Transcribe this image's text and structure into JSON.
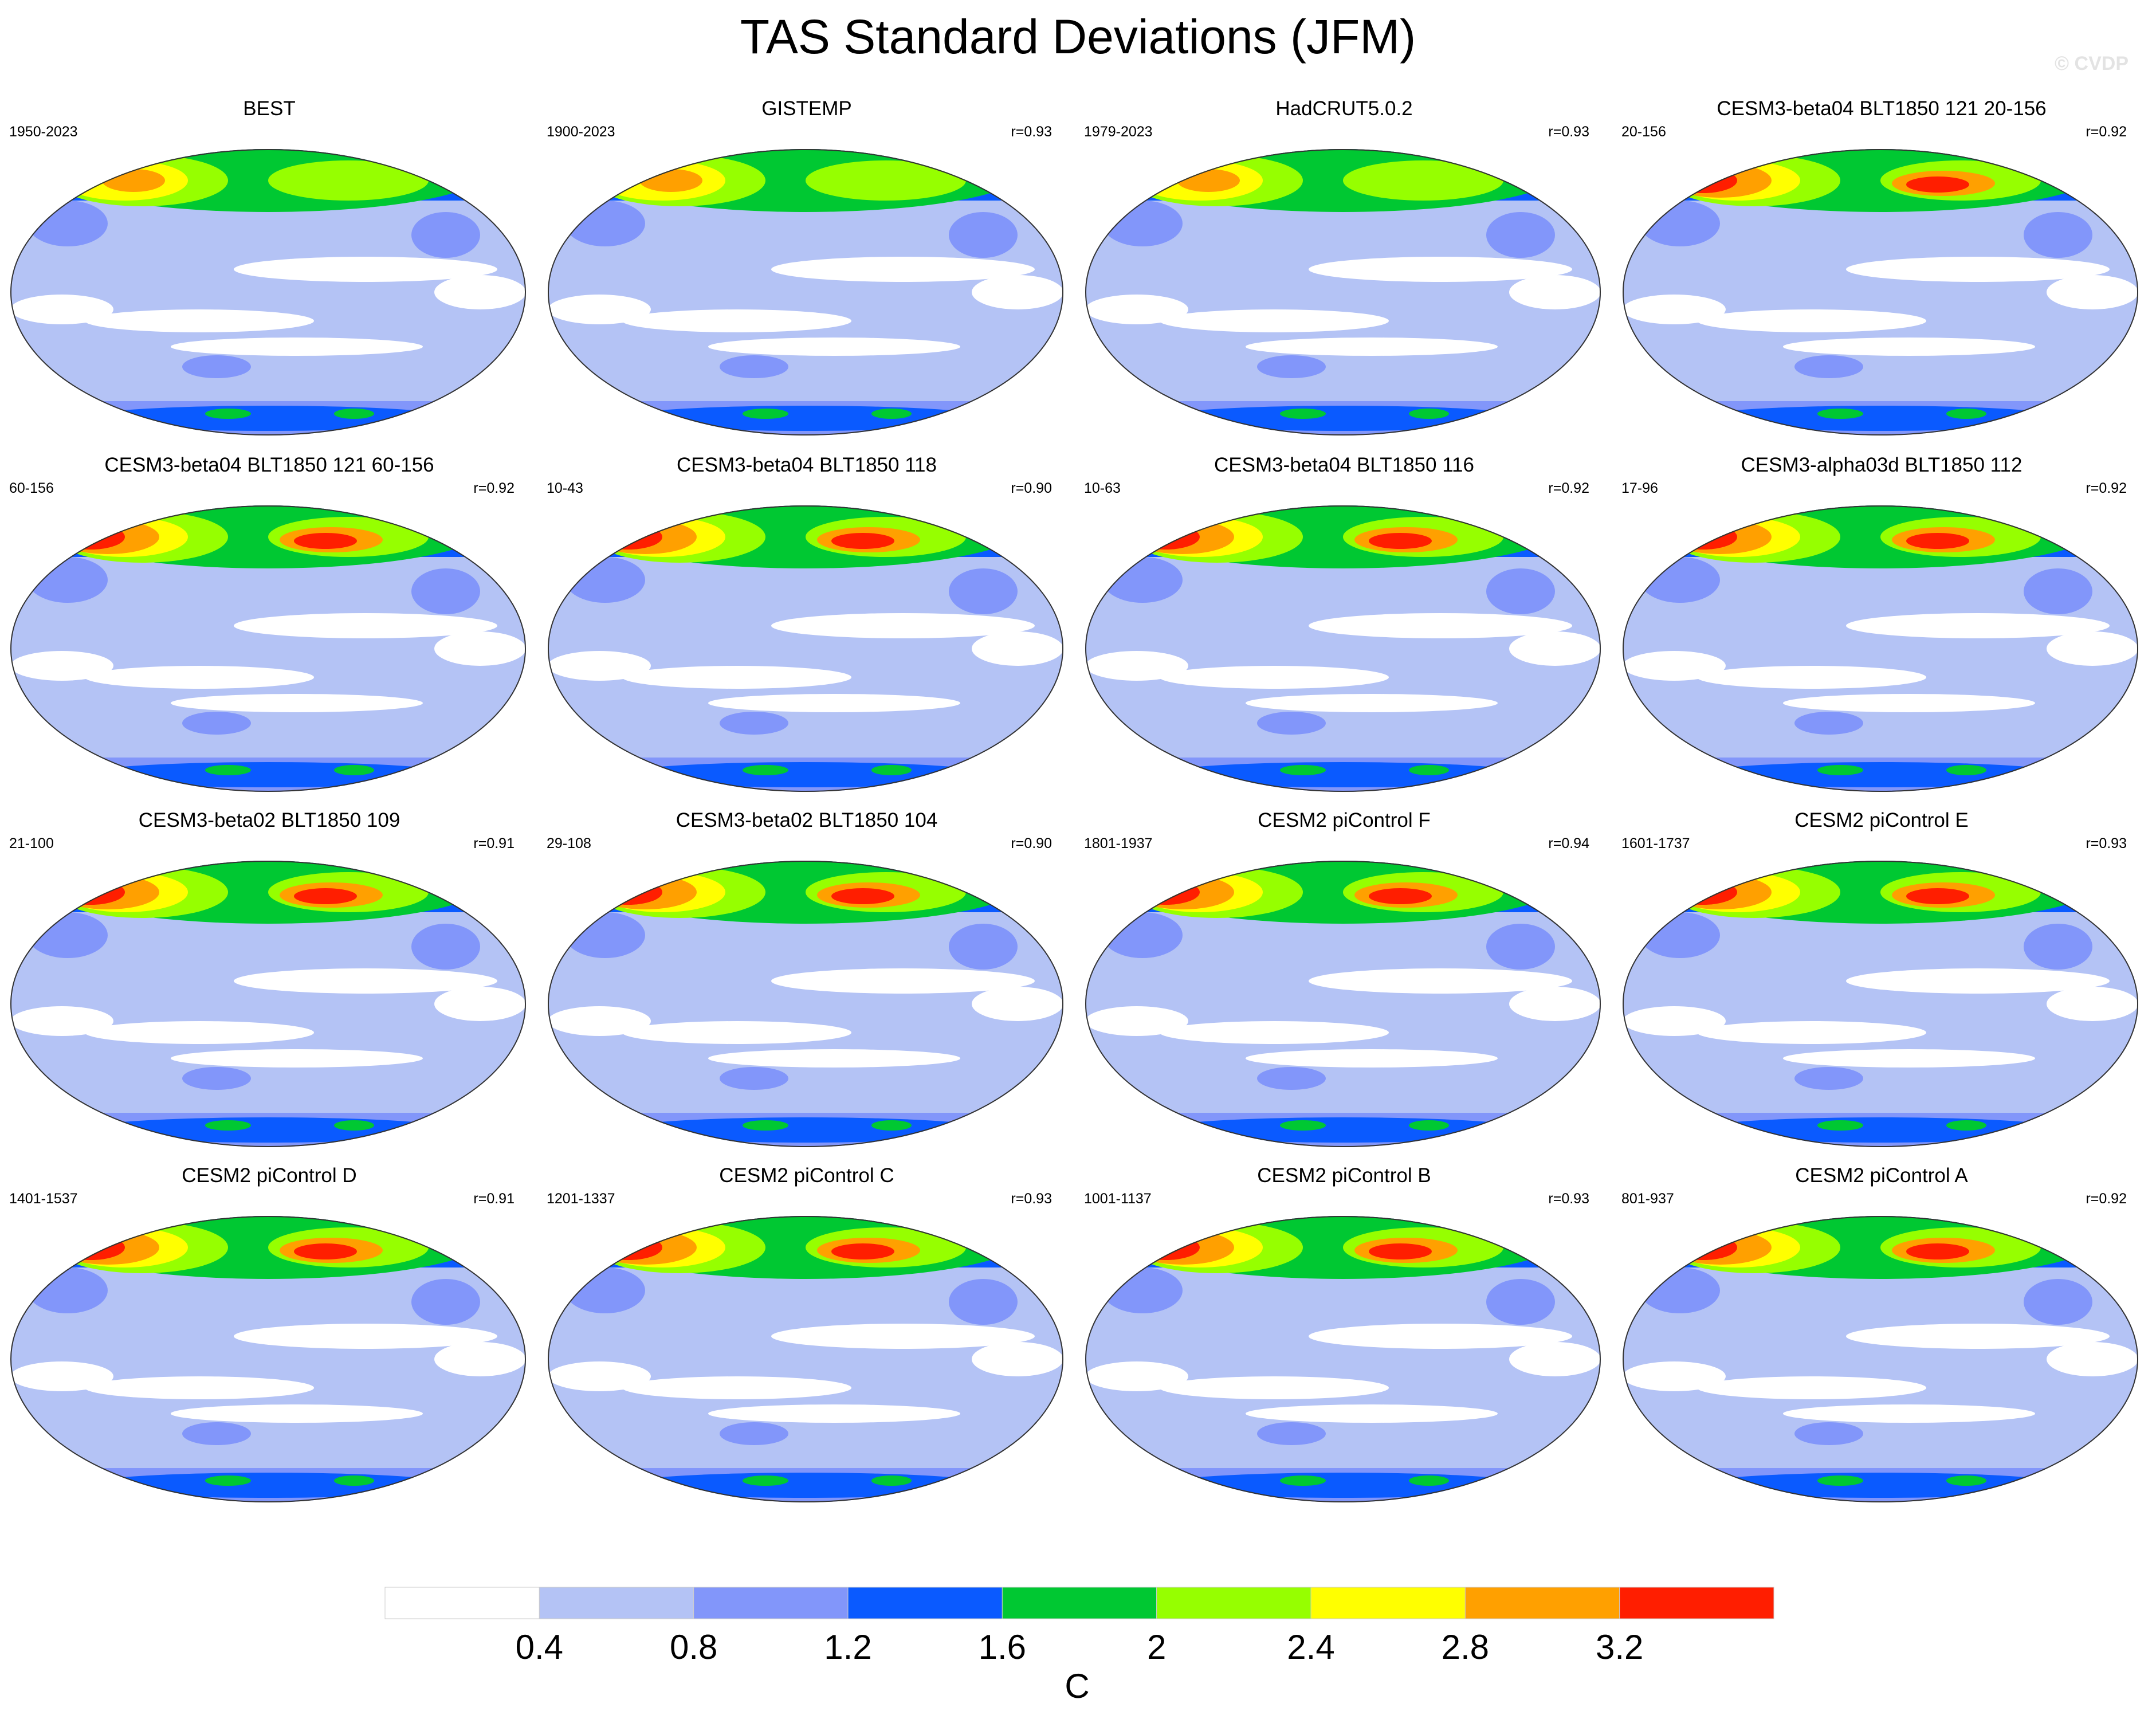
{
  "title": "TAS Standard Deviations (JFM)",
  "watermark": "© CVDP",
  "panels": [
    {
      "title": "BEST",
      "period": "1950-2023",
      "r": ""
    },
    {
      "title": "GISTEMP",
      "period": "1900-2023",
      "r": "r=0.93"
    },
    {
      "title": "HadCRUT5.0.2",
      "period": "1979-2023",
      "r": "r=0.93"
    },
    {
      "title": "CESM3-beta04 BLT1850 121 20-156",
      "period": "20-156",
      "r": "r=0.92"
    },
    {
      "title": "CESM3-beta04 BLT1850 121 60-156",
      "period": "60-156",
      "r": "r=0.92"
    },
    {
      "title": "CESM3-beta04 BLT1850 118",
      "period": "10-43",
      "r": "r=0.90"
    },
    {
      "title": "CESM3-beta04 BLT1850 116",
      "period": "10-63",
      "r": "r=0.92"
    },
    {
      "title": "CESM3-alpha03d BLT1850 112",
      "period": "17-96",
      "r": "r=0.92"
    },
    {
      "title": "CESM3-beta02 BLT1850 109",
      "period": "21-100",
      "r": "r=0.91"
    },
    {
      "title": "CESM3-beta02 BLT1850 104",
      "period": "29-108",
      "r": "r=0.90"
    },
    {
      "title": "CESM2 piControl F",
      "period": "1801-1937",
      "r": "r=0.94"
    },
    {
      "title": "CESM2 piControl E",
      "period": "1601-1737",
      "r": "r=0.93"
    },
    {
      "title": "CESM2 piControl D",
      "period": "1401-1537",
      "r": "r=0.91"
    },
    {
      "title": "CESM2 piControl C",
      "period": "1201-1337",
      "r": "r=0.93"
    },
    {
      "title": "CESM2 piControl B",
      "period": "1001-1137",
      "r": "r=0.93"
    },
    {
      "title": "CESM2 piControl A",
      "period": "801-937",
      "r": "r=0.92"
    }
  ],
  "colorbar": {
    "unit": "C",
    "ticks": [
      "0.4",
      "0.8",
      "1.2",
      "1.6",
      "2",
      "2.4",
      "2.8",
      "3.2"
    ],
    "colors": [
      "#ffffff",
      "#b4c3f5",
      "#8296fa",
      "#0a5aff",
      "#00c832",
      "#96ff00",
      "#ffff00",
      "#ffa000",
      "#ff1e00"
    ]
  }
}
